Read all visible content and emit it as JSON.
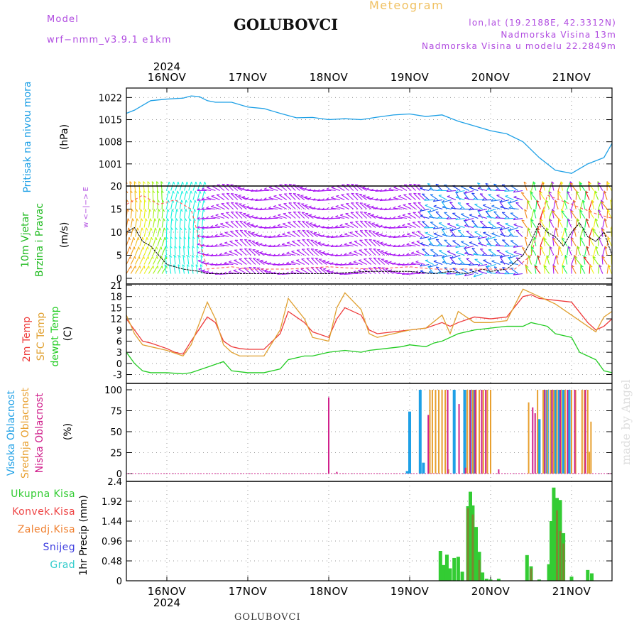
{
  "header": {
    "model_label": "Model",
    "model_name": "wrf−nmm_v3.9.1  e1km",
    "location": "GOLUBOVCI",
    "product": "Meteogram",
    "coords": "lon,lat (19.2188E, 42.3312N)",
    "elevation": "Nadmorska Visina 13m",
    "model_elevation": "Nadmorska Visina u modelu 22.2849m"
  },
  "footer": {
    "location": "GOLUBOVCI",
    "watermark": "made by Angel"
  },
  "colors": {
    "pressure": "#1ea0e6",
    "wind_fast": "#8040ff",
    "temp2m": "#ee3b3b",
    "sfc_temp": "#e0a030",
    "dewpoint": "#22cc22",
    "high_cloud": "#1ea0e6",
    "mid_cloud": "#e8a030",
    "low_cloud": "#d0208c",
    "total_precip": "#33cc33",
    "conv_precip": "#ee4444",
    "frozen_precip": "#f08030",
    "snow": "#4040e0",
    "graupel": "#33cccc"
  },
  "chart_data": [
    {
      "type": "line",
      "panel": "pressure",
      "ylabel": "Pritisak na nivou mora",
      "unit": "(hPa)",
      "ylim": [
        994,
        1025
      ],
      "yticks": [
        1001,
        1008,
        1015,
        1022
      ],
      "x_top_year": "2024",
      "x_ticks": [
        "16NOV",
        "17NOV",
        "18NOV",
        "19NOV",
        "20NOV",
        "21NOV"
      ],
      "x_domain_days": [
        15.5,
        21.5
      ],
      "grid": true,
      "series": [
        {
          "x": [
            15.5,
            15.6,
            15.7,
            15.8,
            16.0,
            16.2,
            16.3,
            16.4,
            16.5,
            16.6,
            16.8,
            17.0,
            17.2,
            17.4,
            17.6,
            17.8,
            18.0,
            18.2,
            18.4,
            18.6,
            18.8,
            19.0,
            19.2,
            19.4,
            19.6,
            19.8,
            20.0,
            20.2,
            20.4,
            20.6,
            20.8,
            21.0,
            21.2,
            21.4,
            21.5
          ],
          "y": [
            1017,
            1018,
            1019.5,
            1021,
            1021.5,
            1021.8,
            1022.5,
            1022.3,
            1021,
            1020.5,
            1020.5,
            1019,
            1018.5,
            1017,
            1015.6,
            1015.7,
            1015,
            1015.3,
            1015,
            1015.8,
            1016.5,
            1016.8,
            1016,
            1016.5,
            1014.5,
            1013,
            1011.5,
            1010.5,
            1008,
            1003,
            999,
            998,
            1001,
            1003,
            1007.5
          ]
        }
      ]
    },
    {
      "type": "wind",
      "panel": "wind",
      "ylabel": "10m Vjetar Brzina i Pravac",
      "unit": "(m/s)",
      "ylim": [
        0,
        20
      ],
      "yticks": [
        0,
        5,
        10,
        15,
        20
      ],
      "compass_label": "w <−|−> E",
      "speed_series": {
        "x": [
          15.5,
          15.6,
          15.7,
          15.8,
          15.9,
          16.0,
          16.2,
          16.4,
          16.5,
          17.0,
          17.5,
          18.0,
          18.5,
          19.0,
          19.3,
          19.5,
          19.7,
          19.9,
          20.0,
          20.2,
          20.4,
          20.5,
          20.6,
          20.7,
          20.8,
          20.9,
          21.0,
          21.1,
          21.2,
          21.3,
          21.4,
          21.5
        ],
        "y": [
          10,
          11,
          8,
          7,
          5,
          3,
          2,
          1.5,
          1,
          1,
          1,
          1,
          1.5,
          1.5,
          1,
          1.5,
          1,
          2,
          1.5,
          2,
          5,
          8,
          12,
          10,
          9,
          7,
          10,
          12,
          9,
          8,
          10,
          5
        ]
      },
      "gust_series": {
        "x": [
          15.5,
          15.7,
          15.9,
          16.1,
          16.3,
          16.5,
          16.8,
          17.0,
          17.5,
          18.0,
          18.5,
          19.0,
          19.3,
          19.5,
          19.7,
          20.0,
          20.3,
          20.5,
          20.7,
          21.0,
          21.3,
          21.5
        ],
        "y": [
          16,
          18,
          16,
          17,
          15,
          2,
          2.5,
          2,
          2,
          2.5,
          2,
          2.5,
          2,
          2,
          2,
          2,
          2,
          5,
          18,
          16,
          14,
          13
        ]
      }
    },
    {
      "type": "line",
      "panel": "temperature",
      "ylabel": "2m Temp",
      "ylabel2": "SFC Temp",
      "ylabel3": "dewpt Temp",
      "unit": "(C)",
      "ylim": [
        -5,
        21
      ],
      "yticks": [
        -3,
        0,
        3,
        6,
        9,
        12,
        15,
        18,
        21
      ],
      "series": [
        {
          "name": "2m Temp",
          "x": [
            15.5,
            15.6,
            15.7,
            15.8,
            16.0,
            16.1,
            16.2,
            16.3,
            16.5,
            16.6,
            16.7,
            16.8,
            16.9,
            17.0,
            17.2,
            17.4,
            17.5,
            17.7,
            17.8,
            18.0,
            18.1,
            18.2,
            18.4,
            18.5,
            18.6,
            18.8,
            19.0,
            19.2,
            19.4,
            19.5,
            19.6,
            19.8,
            20.0,
            20.2,
            20.4,
            20.5,
            20.6,
            20.8,
            21.0,
            21.2,
            21.3,
            21.4,
            21.5
          ],
          "y": [
            12,
            9,
            6,
            5.5,
            4,
            3,
            2.5,
            6,
            12.5,
            11,
            6,
            4.5,
            4,
            3.8,
            3.8,
            8,
            14,
            11,
            8.5,
            7,
            12,
            15,
            13,
            9,
            8,
            8.5,
            9,
            9.5,
            11,
            10,
            11,
            12.5,
            12,
            12.5,
            18,
            18.5,
            17.5,
            17,
            16.5,
            11,
            9,
            10,
            12
          ]
        },
        {
          "name": "SFC Temp",
          "x": [
            15.5,
            15.6,
            15.7,
            15.8,
            16.0,
            16.2,
            16.3,
            16.5,
            16.6,
            16.7,
            16.8,
            16.9,
            17.0,
            17.2,
            17.4,
            17.5,
            17.7,
            17.8,
            18.0,
            18.1,
            18.2,
            18.4,
            18.5,
            18.6,
            18.8,
            19.0,
            19.2,
            19.4,
            19.5,
            19.6,
            19.8,
            20.0,
            20.2,
            20.4,
            20.5,
            20.6,
            20.8,
            21.0,
            21.2,
            21.3,
            21.4,
            21.5
          ],
          "y": [
            13,
            8,
            5,
            4.5,
            3.5,
            2,
            5,
            16.5,
            12,
            5,
            3,
            2,
            2,
            2,
            9,
            17.5,
            12,
            7,
            6,
            15,
            19,
            14.5,
            8,
            7,
            8,
            9,
            9.5,
            13,
            8,
            14,
            11,
            11,
            11.5,
            20,
            19,
            18,
            16,
            13,
            10,
            8.5,
            12.5,
            14
          ]
        },
        {
          "name": "dewpt Temp",
          "x": [
            15.5,
            15.6,
            15.7,
            15.8,
            16.0,
            16.2,
            16.3,
            16.5,
            16.7,
            16.8,
            17.0,
            17.2,
            17.4,
            17.5,
            17.7,
            17.8,
            18.0,
            18.2,
            18.4,
            18.5,
            18.7,
            18.9,
            19.0,
            19.2,
            19.3,
            19.4,
            19.6,
            19.8,
            20.0,
            20.2,
            20.4,
            20.5,
            20.7,
            20.8,
            21.0,
            21.1,
            21.2,
            21.3,
            21.4,
            21.5
          ],
          "y": [
            3,
            0,
            -2,
            -2.5,
            -2.5,
            -2.8,
            -2.5,
            -1,
            0.5,
            -2,
            -2.5,
            -2.5,
            -1.5,
            1,
            2,
            2,
            3,
            3.5,
            3,
            3.5,
            4,
            4.5,
            5,
            4.5,
            5.5,
            6,
            8,
            9,
            9.5,
            10,
            10,
            11,
            10,
            8,
            7,
            3,
            2,
            1,
            -2,
            -2.5
          ]
        }
      ]
    },
    {
      "type": "bar",
      "panel": "cloud",
      "ylabel": "Visoka Oblacnost",
      "ylabel2": "Srednja Oblacnost",
      "ylabel3": "Niska Oblacnost",
      "unit": "(%)",
      "ylim": [
        0,
        100
      ],
      "yticks": [
        0,
        25,
        50,
        75,
        100
      ],
      "series": [
        {
          "name": "Visoka Oblacnost",
          "x": [
            18.97,
            19.0,
            19.13,
            19.17,
            19.55,
            19.68,
            19.75,
            19.8,
            20.4,
            20.6,
            20.66,
            20.7,
            20.75,
            20.8,
            20.85,
            20.9,
            20.97
          ],
          "y": [
            3,
            74,
            100,
            13,
            100,
            100,
            100,
            100,
            0,
            65,
            100,
            100,
            100,
            100,
            100,
            100,
            100
          ]
        },
        {
          "name": "Srednja Oblacnost",
          "x": [
            19.25,
            19.28,
            19.32,
            19.36,
            19.4,
            19.44,
            19.48,
            19.71,
            19.74,
            19.78,
            19.82,
            19.86,
            19.91,
            19.96,
            20.0,
            20.47,
            20.58,
            20.65,
            20.7,
            20.74,
            20.78,
            20.82,
            20.87,
            20.92,
            21.0,
            21.05,
            21.13,
            21.16,
            21.2,
            21.22,
            21.24
          ],
          "y": [
            100,
            100,
            100,
            100,
            100,
            100,
            5,
            100,
            100,
            100,
            100,
            100,
            100,
            100,
            100,
            85,
            100,
            100,
            100,
            100,
            100,
            100,
            100,
            100,
            100,
            100,
            100,
            100,
            100,
            26,
            62
          ]
        },
        {
          "name": "Niska Oblacnost",
          "x": [
            18.0,
            18.02,
            18.1,
            19.23,
            19.47,
            19.61,
            19.69,
            19.75,
            19.81,
            19.89,
            19.94,
            20.1,
            20.52,
            20.55,
            20.67,
            20.76,
            20.86,
            20.95,
            21.04,
            21.17
          ],
          "y": [
            91,
            0,
            2,
            70,
            100,
            83,
            7,
            100,
            100,
            100,
            100,
            5,
            79,
            72,
            100,
            100,
            100,
            100,
            100,
            100
          ]
        }
      ]
    },
    {
      "type": "bar",
      "panel": "precip",
      "ylabel": "1hr Precip",
      "unit": "(mm)",
      "ylim": [
        0,
        2.4
      ],
      "yticks": [
        0,
        0.48,
        0.96,
        1.44,
        1.92,
        2.4
      ],
      "legend": [
        "Ukupna Kisa",
        "Konvek.Kisa",
        "Zaledj.Kisa",
        "Snijeg",
        "Grad"
      ],
      "series": [
        {
          "name": "Ukupna Kisa",
          "x": [
            19.38,
            19.42,
            19.46,
            19.5,
            19.55,
            19.6,
            19.65,
            19.72,
            19.75,
            19.78,
            19.82,
            19.86,
            19.9,
            19.95,
            20.0,
            20.1,
            20.45,
            20.5,
            20.6,
            20.72,
            20.75,
            20.78,
            20.82,
            20.86,
            20.9,
            21.0,
            21.2,
            21.25
          ],
          "y": [
            0.72,
            0.38,
            0.63,
            0.3,
            0.55,
            0.58,
            0.22,
            1.8,
            2.15,
            1.82,
            1.3,
            0.7,
            0.2,
            0.05,
            0.03,
            0.05,
            0.62,
            0.35,
            0.03,
            0.4,
            1.44,
            2.25,
            2.0,
            1.95,
            1.15,
            0.1,
            0.26,
            0.18
          ]
        },
        {
          "name": "Konvek.Kisa",
          "x": [
            19.72,
            19.78,
            19.86,
            20.5,
            20.82,
            20.86,
            20.9
          ],
          "y": [
            1.75,
            1.6,
            0.5,
            0.3,
            1.7,
            1.2,
            0.9
          ]
        }
      ]
    }
  ]
}
